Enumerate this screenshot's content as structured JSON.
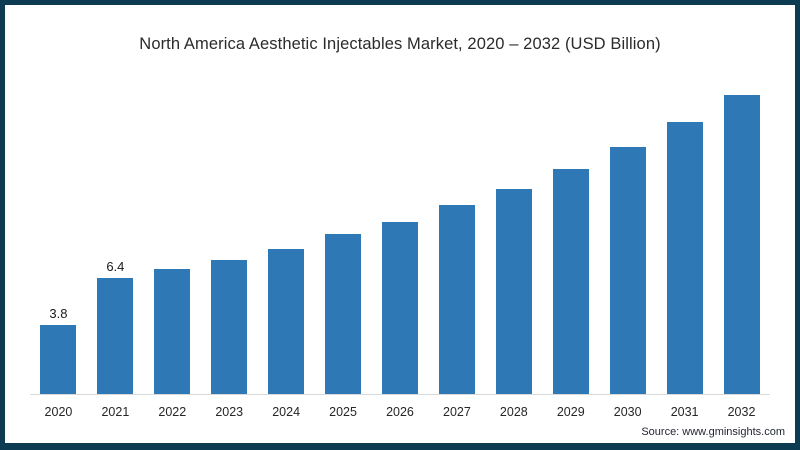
{
  "chart": {
    "title": "North America Aesthetic Injectables Market, 2020 – 2032 (USD Billion)",
    "source": "Source: www.gminsights.com"
  },
  "chart_data": {
    "type": "bar",
    "title": "North America Aesthetic Injectables Market, 2020 – 2032 (USD Billion)",
    "categories": [
      "2020",
      "2021",
      "2022",
      "2023",
      "2024",
      "2025",
      "2026",
      "2027",
      "2028",
      "2029",
      "2030",
      "2031",
      "2032"
    ],
    "values": [
      3.8,
      6.4,
      6.9,
      7.4,
      8.0,
      8.8,
      9.5,
      10.4,
      11.3,
      12.4,
      13.6,
      15.0,
      16.5
    ],
    "data_labels": {
      "2020": "3.8",
      "2021": "6.4"
    },
    "xlabel": "",
    "ylabel": "",
    "ylim": [
      0,
      17
    ],
    "grid": false,
    "legend": false,
    "bar_color": "#2e78b5",
    "frame_color": "#0d3b52",
    "axis_line_color": "#d9d9d9",
    "source": "Source: www.gminsights.com"
  }
}
